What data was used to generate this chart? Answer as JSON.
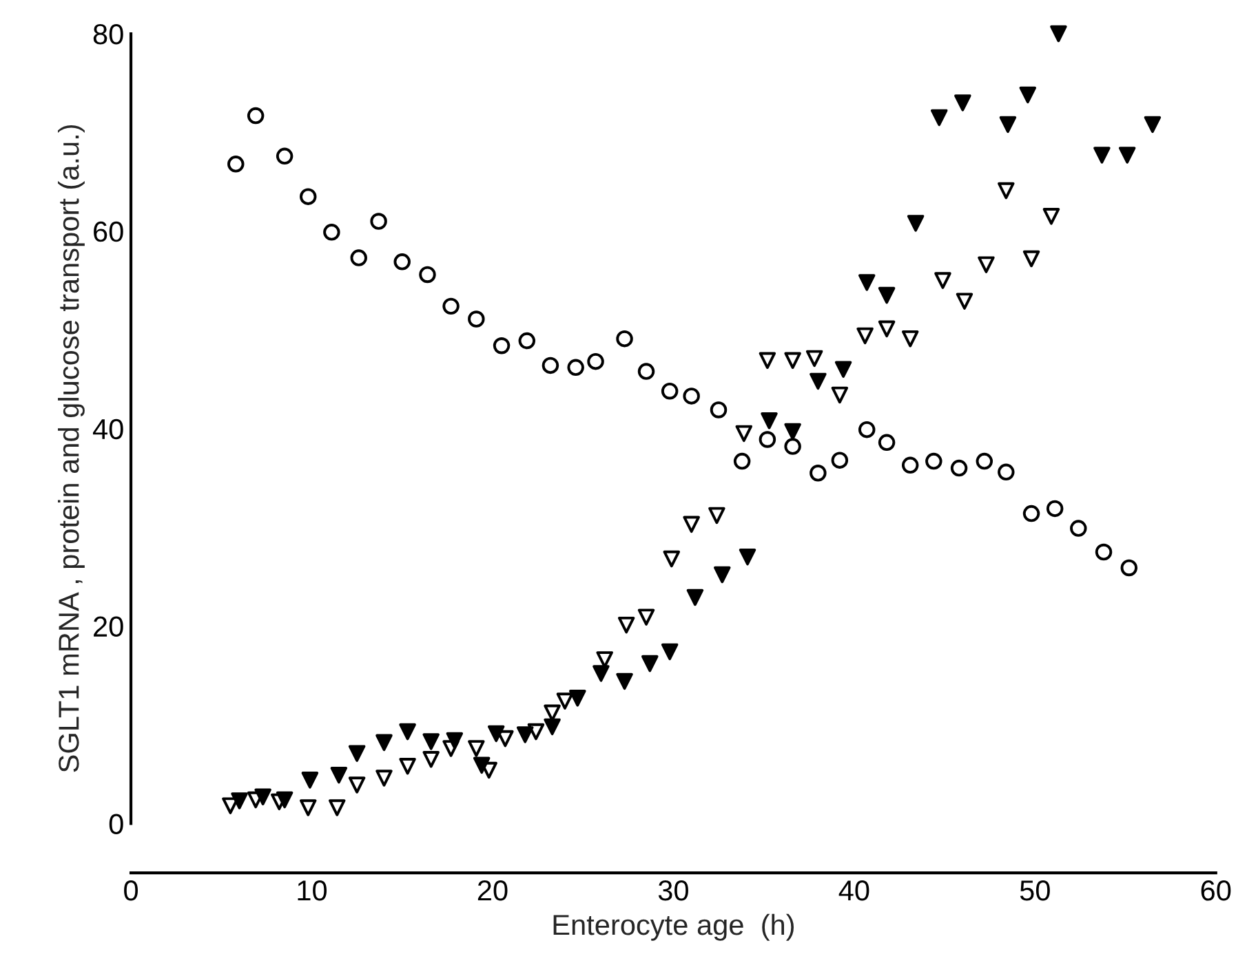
{
  "chart_data": {
    "type": "scatter",
    "xlabel": "Enterocyte age  (h)",
    "ylabel": "SGLT1 mRNA , protein and glucose transport (a.u.)",
    "xlim": [
      0,
      60
    ],
    "xticks": [
      {
        "value": 0,
        "label": "0"
      },
      10,
      20,
      30,
      40,
      50,
      60
    ],
    "ylim": [
      -5,
      81
    ],
    "yticks": [
      0,
      20,
      40,
      60,
      80
    ],
    "grid": false,
    "legend": false,
    "series": [
      {
        "color": "#ffffff",
        "marker": "circle",
        "x": [
          5.8,
          6.9,
          8.5,
          9.8,
          11.1,
          12.6,
          13.7,
          15.0,
          16.4,
          17.7,
          19.1,
          20.5,
          21.9,
          23.2,
          24.6,
          25.7,
          27.3,
          28.5,
          29.8,
          31.0,
          32.5,
          33.8,
          35.2,
          36.6,
          38.0,
          39.2,
          40.7,
          41.8,
          43.1,
          44.4,
          45.8,
          47.2,
          48.4,
          49.8,
          51.1,
          52.4,
          53.8,
          55.2
        ],
        "values": [
          66.8,
          71.7,
          67.6,
          63.5,
          59.9,
          57.3,
          61.0,
          56.9,
          55.6,
          52.4,
          51.1,
          48.4,
          48.9,
          46.4,
          46.2,
          46.8,
          49.1,
          45.8,
          43.8,
          43.3,
          41.9,
          36.7,
          38.9,
          38.2,
          35.5,
          36.8,
          39.9,
          38.6,
          36.3,
          36.7,
          36.0,
          36.7,
          35.6,
          31.4,
          31.9,
          29.9,
          27.5,
          25.9
        ]
      },
      {
        "color": "#ffffff",
        "marker": "triangle",
        "x": [
          5.5,
          6.9,
          8.2,
          9.8,
          11.4,
          12.5,
          14.0,
          15.3,
          16.6,
          17.7,
          19.1,
          19.8,
          20.7,
          22.4,
          23.3,
          24.0,
          26.2,
          27.4,
          28.5,
          29.9,
          31.0,
          32.4,
          33.9,
          35.2,
          36.6,
          37.8,
          39.2,
          40.6,
          41.8,
          43.1,
          44.9,
          46.1,
          47.3,
          48.4,
          49.8,
          50.9
        ],
        "values": [
          1.8,
          2.4,
          2.2,
          1.6,
          1.6,
          3.9,
          4.6,
          5.8,
          6.5,
          7.6,
          7.6,
          5.4,
          8.6,
          9.3,
          11.2,
          12.4,
          16.6,
          20.1,
          20.9,
          26.8,
          30.3,
          31.2,
          39.5,
          46.9,
          46.9,
          47.1,
          43.4,
          49.4,
          50.1,
          49.1,
          55.0,
          52.9,
          56.6,
          64.1,
          57.2,
          61.5
        ]
      },
      {
        "color": "#000000",
        "marker": "triangle",
        "x": [
          6.0,
          7.3,
          8.5,
          9.9,
          11.5,
          12.5,
          14.0,
          15.3,
          16.6,
          17.9,
          19.4,
          20.2,
          21.8,
          23.3,
          24.7,
          26.0,
          27.3,
          28.7,
          29.8,
          31.2,
          32.7,
          34.1,
          35.3,
          36.6,
          38.0,
          39.4,
          40.7,
          41.8,
          43.4,
          44.7,
          46.0,
          48.5,
          49.6,
          51.3,
          53.7,
          55.1,
          56.5
        ],
        "values": [
          2.3,
          2.7,
          2.4,
          4.4,
          4.9,
          7.1,
          8.2,
          9.3,
          8.3,
          8.4,
          5.9,
          9.1,
          9.0,
          9.8,
          12.7,
          15.2,
          14.4,
          16.2,
          17.4,
          22.9,
          25.2,
          27.0,
          40.8,
          39.7,
          44.8,
          46.0,
          54.8,
          53.5,
          60.8,
          71.5,
          73.0,
          70.8,
          73.8,
          80.0,
          67.7,
          67.7,
          70.8
        ]
      }
    ]
  }
}
